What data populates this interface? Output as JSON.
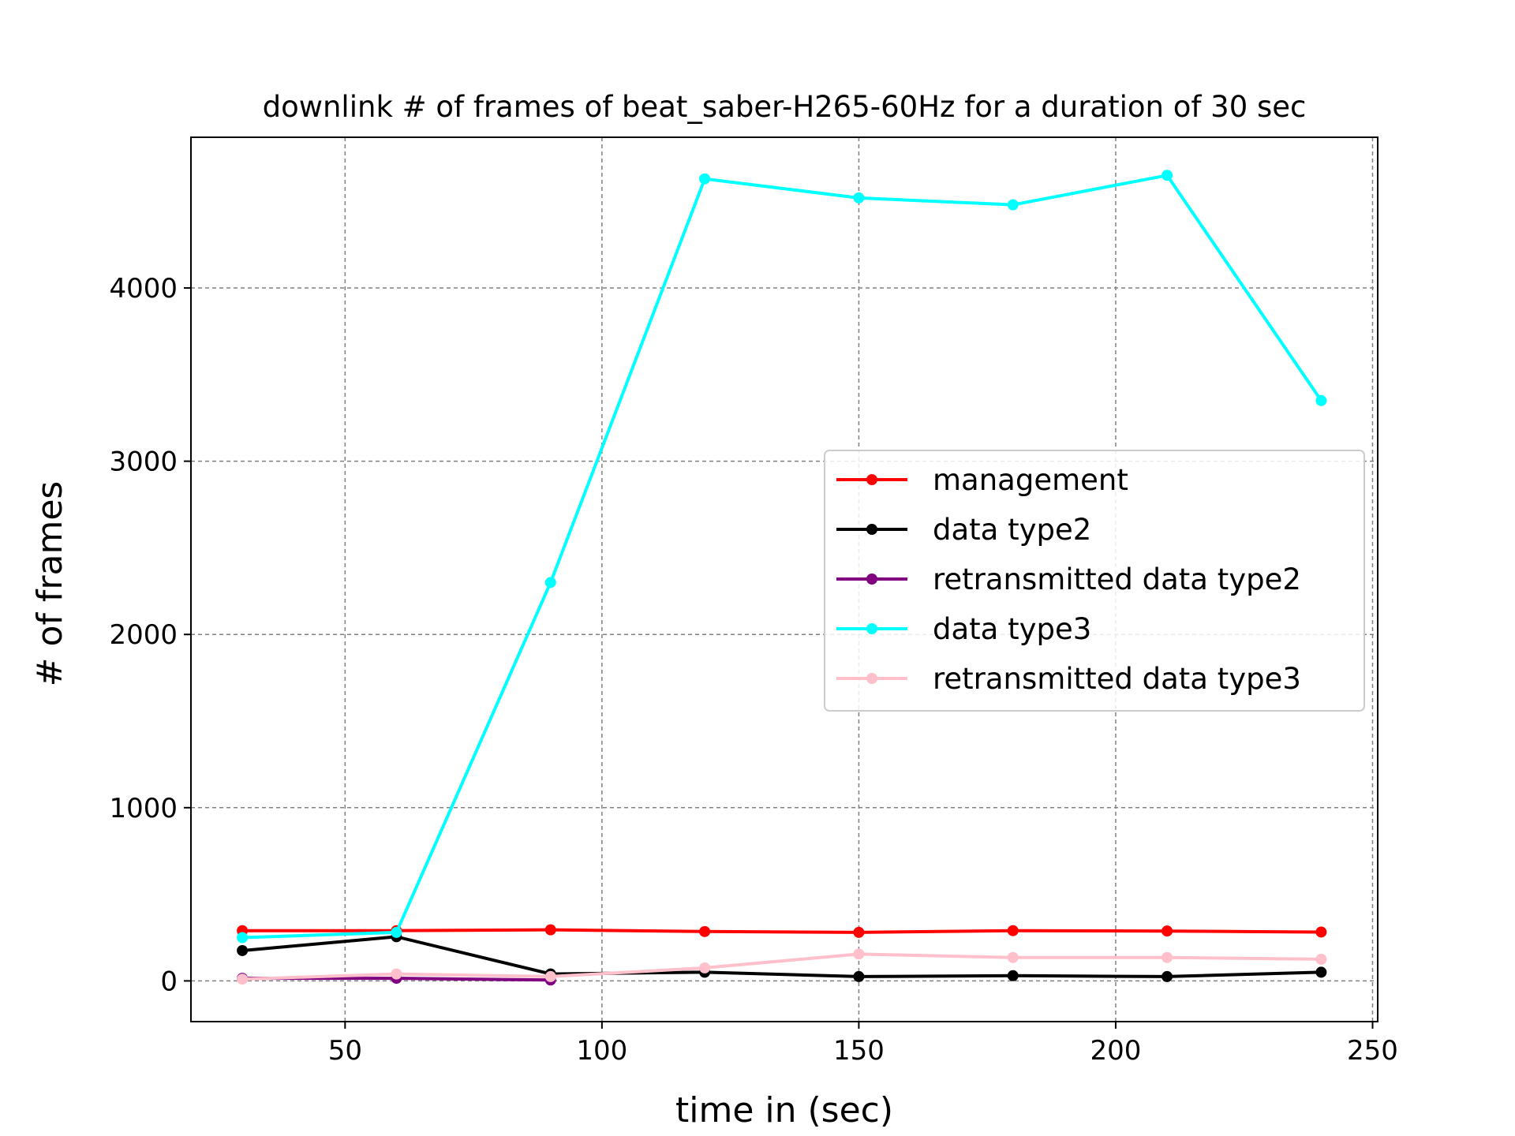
{
  "chart_data": {
    "type": "line",
    "title": "downlink # of frames of beat_saber-H265-60Hz for a duration of 30 sec",
    "xlabel": "time in (sec)",
    "ylabel": "# of frames",
    "xlim": [
      20,
      251
    ],
    "ylim": [
      -235,
      4870
    ],
    "xticks": [
      50,
      100,
      150,
      200,
      250
    ],
    "yticks": [
      0,
      1000,
      2000,
      3000,
      4000
    ],
    "grid": true,
    "legend_position": "center-right",
    "series": [
      {
        "name": "management",
        "color": "#ff0000",
        "x": [
          30,
          60,
          90,
          120,
          150,
          180,
          210,
          240
        ],
        "y": [
          290,
          290,
          295,
          285,
          280,
          290,
          288,
          282
        ]
      },
      {
        "name": "data type2",
        "color": "#000000",
        "x": [
          30,
          60,
          90,
          120,
          150,
          180,
          210,
          240
        ],
        "y": [
          175,
          255,
          40,
          50,
          25,
          30,
          25,
          50
        ]
      },
      {
        "name": "retransmitted data type2",
        "color": "#800080",
        "x": [
          30,
          60,
          90
        ],
        "y": [
          15,
          15,
          5
        ]
      },
      {
        "name": "data type3",
        "color": "#00ffff",
        "x": [
          30,
          60,
          90,
          120,
          150,
          180,
          210,
          240
        ],
        "y": [
          250,
          280,
          2300,
          4630,
          4520,
          4480,
          4650,
          3350
        ]
      },
      {
        "name": "retransmitted data type3",
        "color": "#ffc0cb",
        "x": [
          30,
          60,
          90,
          120,
          150,
          180,
          210,
          240
        ],
        "y": [
          10,
          40,
          25,
          75,
          155,
          135,
          135,
          125
        ]
      }
    ]
  }
}
